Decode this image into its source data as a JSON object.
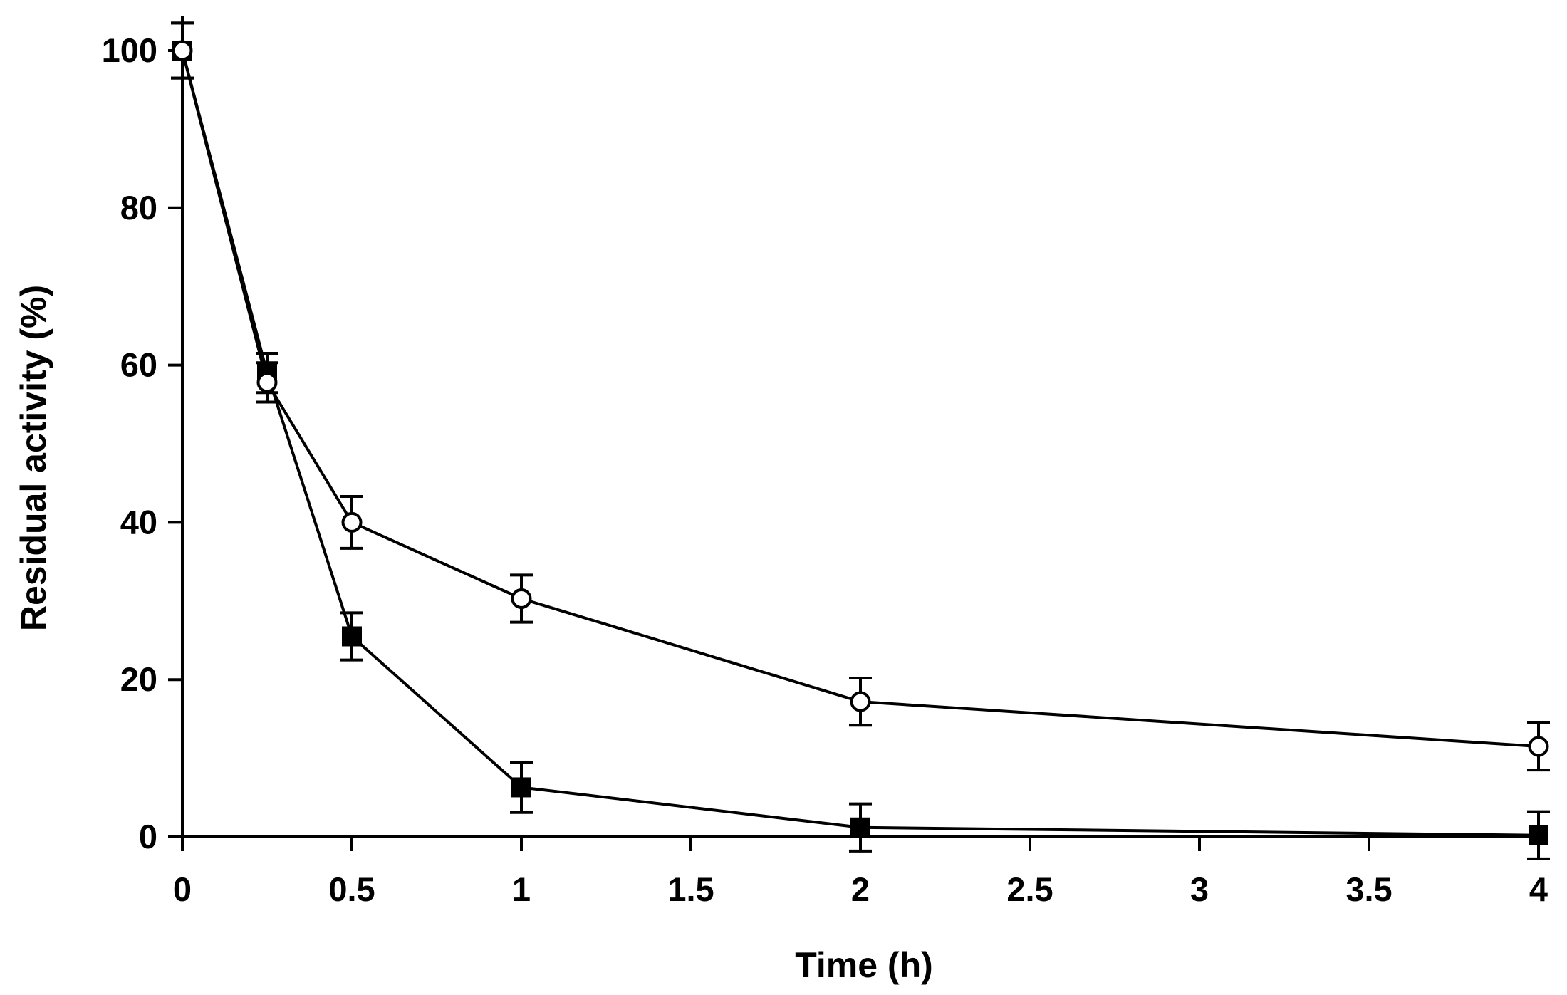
{
  "chart_data": {
    "type": "line",
    "title": "",
    "xlabel": "Time (h)",
    "ylabel": "Residual activity (%)",
    "xlim": [
      0,
      4
    ],
    "ylim": [
      0,
      100
    ],
    "x_ticks": [
      0,
      0.5,
      1,
      1.5,
      2,
      2.5,
      3,
      3.5,
      4
    ],
    "x_tick_labels": [
      "0",
      "0.5",
      "1",
      "1.5",
      "2",
      "2.5",
      "3",
      "3.5",
      "4"
    ],
    "y_ticks": [
      0,
      20,
      40,
      60,
      80,
      100
    ],
    "y_tick_labels": [
      "0",
      "20",
      "40",
      "60",
      "80",
      "100"
    ],
    "grid": false,
    "legend": null,
    "series": [
      {
        "name": "filled squares",
        "marker": "square-filled",
        "x": [
          0,
          0.25,
          0.5,
          1,
          2,
          4
        ],
        "values": [
          100,
          59,
          25.5,
          6.3,
          1.2,
          0.2
        ],
        "errors": [
          3.5,
          2.5,
          3,
          3.2,
          3,
          3
        ]
      },
      {
        "name": "open circles",
        "marker": "circle-open",
        "x": [
          0,
          0.25,
          0.5,
          1,
          2,
          4
        ],
        "values": [
          100,
          57.8,
          40,
          30.3,
          17.2,
          11.5
        ],
        "errors": [
          3.5,
          2.5,
          3.3,
          3,
          3,
          3
        ]
      }
    ]
  }
}
